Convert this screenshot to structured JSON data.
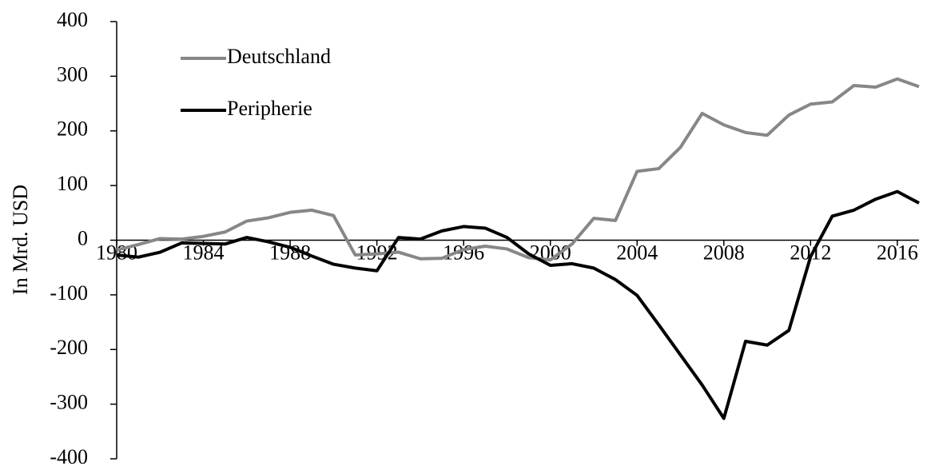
{
  "chart_data": {
    "type": "line",
    "y_label": "In Mrd. USD",
    "x": [
      1980,
      1981,
      1982,
      1983,
      1984,
      1985,
      1986,
      1987,
      1988,
      1989,
      1990,
      1991,
      1992,
      1993,
      1994,
      1995,
      1996,
      1997,
      1998,
      1999,
      2000,
      2001,
      2002,
      2003,
      2004,
      2005,
      2006,
      2007,
      2008,
      2009,
      2010,
      2011,
      2012,
      2013,
      2014,
      2015,
      2016,
      2017
    ],
    "series": [
      {
        "name": "Deutschland",
        "color": "#878787",
        "values": [
          -18,
          -8,
          3,
          2,
          7,
          15,
          35,
          41,
          51,
          55,
          45,
          -27,
          -25,
          -22,
          -34,
          -33,
          -17,
          -11,
          -16,
          -32,
          -36,
          -7,
          40,
          36,
          126,
          131,
          170,
          232,
          211,
          197,
          192,
          229,
          249,
          253,
          283,
          280,
          295,
          281
        ]
      },
      {
        "name": "Peripherie",
        "color": "#000000",
        "values": [
          -27,
          -31,
          -22,
          -5,
          -6,
          -7,
          5,
          -3,
          -13,
          -29,
          -44,
          -51,
          -56,
          5,
          2,
          17,
          25,
          22,
          5,
          -25,
          -46,
          -43,
          -51,
          -72,
          -101,
          -155,
          -210,
          -265,
          -326,
          -185,
          -192,
          -165,
          -30,
          44,
          55,
          75,
          89,
          68
        ]
      }
    ],
    "xlim": [
      1980,
      2017
    ],
    "xticks": [
      1980,
      1984,
      1988,
      1992,
      1996,
      2000,
      2004,
      2008,
      2012,
      2016
    ],
    "ylim": [
      -400,
      400
    ],
    "yticks": [
      -400,
      -300,
      -200,
      -100,
      0,
      100,
      200,
      300,
      400
    ],
    "legend": "upper left"
  }
}
